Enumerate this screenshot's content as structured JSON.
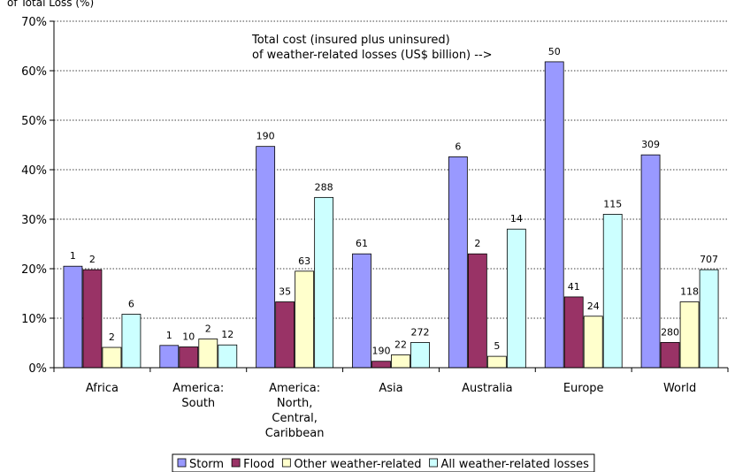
{
  "chart_data": {
    "type": "bar",
    "ylabel": "of Total Loss (%)",
    "ylim": [
      0,
      70
    ],
    "yticks": [
      "0%",
      "10%",
      "20%",
      "30%",
      "40%",
      "50%",
      "60%",
      "70%"
    ],
    "grid": "horizontal dotted",
    "legend_position": "bottom",
    "annotation": [
      "Total cost (insured plus uninsured)",
      "of weather-related losses (US$ billion) -->"
    ],
    "categories": [
      [
        "Africa"
      ],
      [
        "America:",
        "South"
      ],
      [
        "America:",
        "North,",
        "Central,",
        "Caribbean"
      ],
      [
        "Asia"
      ],
      [
        "Australia"
      ],
      [
        "Europe"
      ],
      [
        "World"
      ]
    ],
    "series": [
      {
        "name": "Storm",
        "color": "#9999ff",
        "values": [
          20.5,
          4.5,
          44.7,
          23.0,
          42.6,
          61.8,
          43.0
        ],
        "labels": [
          "1",
          "1",
          "190",
          "61",
          "6",
          "50",
          "309"
        ]
      },
      {
        "name": "Flood",
        "color": "#993366",
        "values": [
          19.8,
          4.2,
          13.3,
          1.3,
          23.0,
          14.3,
          5.1
        ],
        "labels": [
          "2",
          "10",
          "35",
          "190",
          "2",
          "41",
          "280"
        ]
      },
      {
        "name": "Other weather-related",
        "color": "#ffffcc",
        "values": [
          4.1,
          5.8,
          19.5,
          2.6,
          2.3,
          10.4,
          13.3
        ],
        "labels": [
          "2",
          "2",
          "63",
          "22",
          "5",
          "24",
          "118"
        ]
      },
      {
        "name": "All weather-related losses",
        "color": "#ccffff",
        "values": [
          10.8,
          4.6,
          34.4,
          5.1,
          28.0,
          31.0,
          19.8
        ],
        "labels": [
          "6",
          "12",
          "288",
          "272",
          "14",
          "115",
          "707"
        ]
      }
    ]
  }
}
